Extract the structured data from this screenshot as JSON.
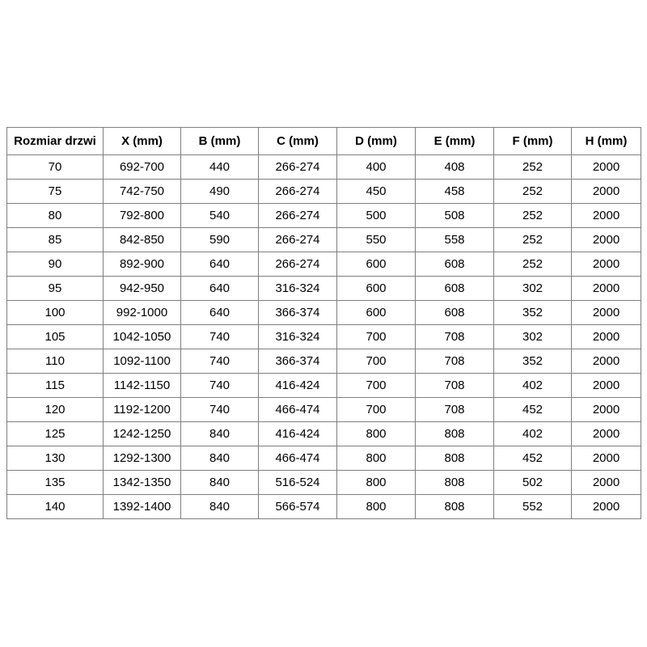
{
  "table": {
    "headers": [
      "Rozmiar drzwi",
      "X (mm)",
      "B (mm)",
      "C (mm)",
      "D (mm)",
      "E (mm)",
      "F (mm)",
      "H (mm)"
    ],
    "rows": [
      [
        "70",
        "692-700",
        "440",
        "266-274",
        "400",
        "408",
        "252",
        "2000"
      ],
      [
        "75",
        "742-750",
        "490",
        "266-274",
        "450",
        "458",
        "252",
        "2000"
      ],
      [
        "80",
        "792-800",
        "540",
        "266-274",
        "500",
        "508",
        "252",
        "2000"
      ],
      [
        "85",
        "842-850",
        "590",
        "266-274",
        "550",
        "558",
        "252",
        "2000"
      ],
      [
        "90",
        "892-900",
        "640",
        "266-274",
        "600",
        "608",
        "252",
        "2000"
      ],
      [
        "95",
        "942-950",
        "640",
        "316-324",
        "600",
        "608",
        "302",
        "2000"
      ],
      [
        "100",
        "992-1000",
        "640",
        "366-374",
        "600",
        "608",
        "352",
        "2000"
      ],
      [
        "105",
        "1042-1050",
        "740",
        "316-324",
        "700",
        "708",
        "302",
        "2000"
      ],
      [
        "110",
        "1092-1100",
        "740",
        "366-374",
        "700",
        "708",
        "352",
        "2000"
      ],
      [
        "115",
        "1142-1150",
        "740",
        "416-424",
        "700",
        "708",
        "402",
        "2000"
      ],
      [
        "120",
        "1192-1200",
        "740",
        "466-474",
        "700",
        "708",
        "452",
        "2000"
      ],
      [
        "125",
        "1242-1250",
        "840",
        "416-424",
        "800",
        "808",
        "402",
        "2000"
      ],
      [
        "130",
        "1292-1300",
        "840",
        "466-474",
        "800",
        "808",
        "452",
        "2000"
      ],
      [
        "135",
        "1342-1350",
        "840",
        "516-524",
        "800",
        "808",
        "502",
        "2000"
      ],
      [
        "140",
        "1392-1400",
        "840",
        "566-574",
        "800",
        "808",
        "552",
        "2000"
      ]
    ]
  },
  "colors": {
    "border": "#7f7f7f",
    "text": "#000000",
    "background": "#ffffff"
  }
}
